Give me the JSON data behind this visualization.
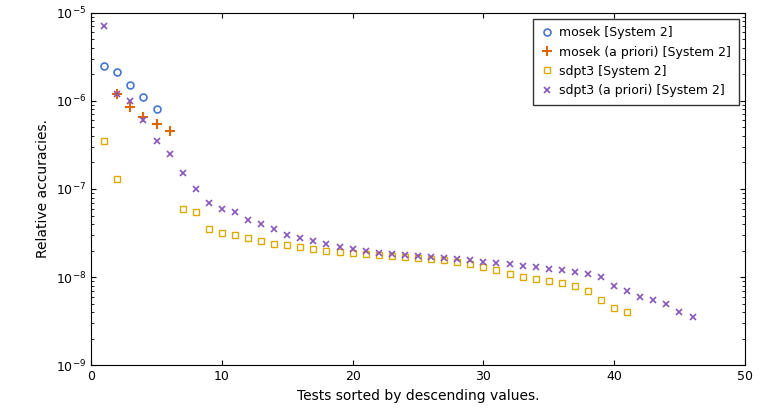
{
  "title": "",
  "xlabel": "Tests sorted by descending values.",
  "ylabel": "Relative accuracies.",
  "xlim": [
    0,
    50
  ],
  "ylim": [
    1e-09,
    1e-05
  ],
  "series": {
    "mosek": {
      "label": "mosek [System 2]",
      "color": "#4477cc",
      "marker": "o",
      "markersize": 5,
      "linewidth": 1.2,
      "x": [
        1,
        2,
        3,
        4,
        5
      ],
      "y": [
        2.5e-06,
        2.1e-06,
        1.5e-06,
        1.1e-06,
        8e-07
      ]
    },
    "mosek_apriori": {
      "label": "mosek (a priori) [System 2]",
      "color": "#dd6600",
      "marker": "+",
      "markersize": 7,
      "linewidth": 1.5,
      "x": [
        2,
        3,
        4,
        5,
        6
      ],
      "y": [
        1.2e-06,
        8.5e-07,
        6.5e-07,
        5.5e-07,
        4.5e-07
      ]
    },
    "sdpt3": {
      "label": "sdpt3 [System 2]",
      "color": "#ddaa00",
      "marker": "s",
      "markersize": 4,
      "linewidth": 1.0,
      "x": [
        1,
        2,
        7,
        8,
        9,
        10,
        11,
        12,
        13,
        14,
        15,
        16,
        17,
        18,
        19,
        20,
        21,
        22,
        23,
        24,
        25,
        26,
        27,
        28,
        29,
        30,
        31,
        32,
        33,
        34,
        35,
        36,
        37,
        38,
        39,
        40,
        41
      ],
      "y": [
        3.5e-07,
        1.3e-07,
        6e-08,
        5.5e-08,
        3.5e-08,
        3.2e-08,
        3e-08,
        2.8e-08,
        2.6e-08,
        2.4e-08,
        2.3e-08,
        2.2e-08,
        2.1e-08,
        2e-08,
        1.95e-08,
        1.9e-08,
        1.85e-08,
        1.8e-08,
        1.75e-08,
        1.7e-08,
        1.65e-08,
        1.6e-08,
        1.55e-08,
        1.5e-08,
        1.4e-08,
        1.3e-08,
        1.2e-08,
        1.1e-08,
        1e-08,
        9.5e-09,
        9e-09,
        8.5e-09,
        8e-09,
        7e-09,
        5.5e-09,
        4.5e-09,
        4e-09
      ]
    },
    "sdpt3_apriori": {
      "label": "sdpt3 (a priori) [System 2]",
      "color": "#8855bb",
      "marker": "x",
      "markersize": 5,
      "linewidth": 1.2,
      "x": [
        1,
        2,
        3,
        4,
        5,
        6,
        7,
        8,
        9,
        10,
        11,
        12,
        13,
        14,
        15,
        16,
        17,
        18,
        19,
        20,
        21,
        22,
        23,
        24,
        25,
        26,
        27,
        28,
        29,
        30,
        31,
        32,
        33,
        34,
        35,
        36,
        37,
        38,
        39,
        40,
        41,
        42,
        43,
        44,
        45,
        46
      ],
      "y": [
        7e-06,
        1.2e-06,
        1e-06,
        6e-07,
        3.5e-07,
        2.5e-07,
        1.5e-07,
        1e-07,
        7e-08,
        6e-08,
        5.5e-08,
        4.5e-08,
        4e-08,
        3.5e-08,
        3e-08,
        2.8e-08,
        2.6e-08,
        2.4e-08,
        2.2e-08,
        2.1e-08,
        2e-08,
        1.9e-08,
        1.85e-08,
        1.8e-08,
        1.75e-08,
        1.7e-08,
        1.65e-08,
        1.6e-08,
        1.55e-08,
        1.5e-08,
        1.45e-08,
        1.4e-08,
        1.35e-08,
        1.3e-08,
        1.25e-08,
        1.2e-08,
        1.15e-08,
        1.1e-08,
        1e-08,
        8e-09,
        7e-09,
        6e-09,
        5.5e-09,
        5e-09,
        4e-09,
        3.5e-09
      ]
    }
  },
  "legend_loc": "upper right",
  "background_color": "#ffffff",
  "grid": false,
  "figsize": [
    7.6,
    4.2
  ],
  "dpi": 100
}
